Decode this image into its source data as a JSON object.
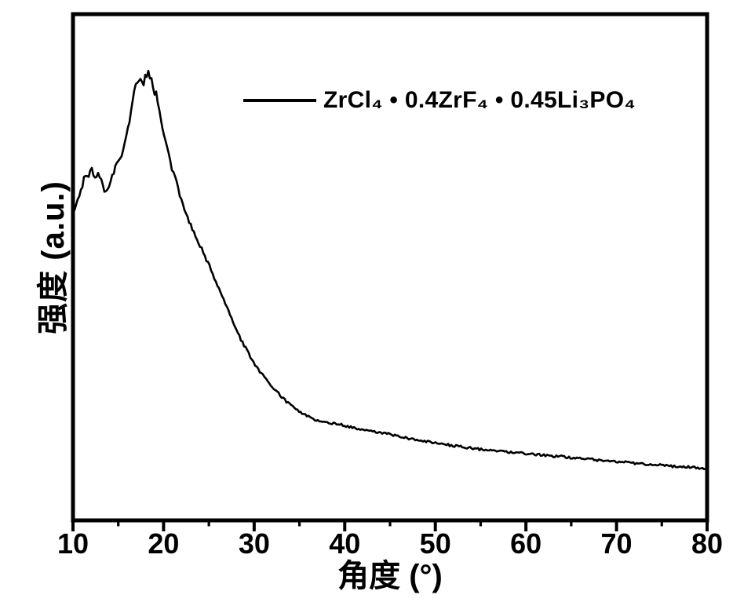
{
  "figure": {
    "background": "#ffffff",
    "frame_color": "#000000",
    "line_color": "#000000",
    "text_color": "#000000"
  },
  "chart_data": {
    "type": "line",
    "title": "",
    "xlabel": "角度 (°)",
    "ylabel": "强度 (a.u.)",
    "xlim": [
      10,
      80
    ],
    "ylim": [
      0,
      1
    ],
    "xticks": [
      10,
      20,
      30,
      40,
      50,
      60,
      70,
      80
    ],
    "minor_xticks": [
      15,
      25,
      35,
      45,
      55,
      65,
      75
    ],
    "yticks": [],
    "grid": false,
    "legend": {
      "position": "upper-center-inside",
      "entries": [
        {
          "label": "ZrCl₄ • 0.4ZrF₄ • 0.45Li₃PO₄",
          "color": "#000000"
        }
      ]
    },
    "series": [
      {
        "name": "ZrCl₄ • 0.4ZrF₄ • 0.45Li₃PO₄",
        "points": [
          [
            10,
            0.605
          ],
          [
            10.3,
            0.618
          ],
          [
            10.6,
            0.632
          ],
          [
            10.9,
            0.648
          ],
          [
            11.2,
            0.667
          ],
          [
            11.5,
            0.673
          ],
          [
            11.8,
            0.681
          ],
          [
            12.1,
            0.686
          ],
          [
            12.4,
            0.672
          ],
          [
            12.7,
            0.679
          ],
          [
            13,
            0.674
          ],
          [
            13.3,
            0.655
          ],
          [
            13.6,
            0.645
          ],
          [
            13.9,
            0.655
          ],
          [
            14.2,
            0.668
          ],
          [
            14.5,
            0.682
          ],
          [
            14.8,
            0.698
          ],
          [
            15.1,
            0.71
          ],
          [
            15.4,
            0.722
          ],
          [
            15.7,
            0.74
          ],
          [
            16,
            0.766
          ],
          [
            16.3,
            0.793
          ],
          [
            16.6,
            0.82
          ],
          [
            16.9,
            0.845
          ],
          [
            17.1,
            0.862
          ],
          [
            17.35,
            0.875
          ],
          [
            17.6,
            0.873
          ],
          [
            17.85,
            0.857
          ],
          [
            18.1,
            0.876
          ],
          [
            18.35,
            0.874
          ],
          [
            18.6,
            0.871
          ],
          [
            18.85,
            0.856
          ],
          [
            19.1,
            0.838
          ],
          [
            19.4,
            0.812
          ],
          [
            19.7,
            0.786
          ],
          [
            20,
            0.766
          ],
          [
            20.4,
            0.732
          ],
          [
            20.8,
            0.7
          ],
          [
            21.2,
            0.676
          ],
          [
            21.6,
            0.652
          ],
          [
            22,
            0.623
          ],
          [
            22.5,
            0.6
          ],
          [
            23,
            0.577
          ],
          [
            23.5,
            0.558
          ],
          [
            24,
            0.54
          ],
          [
            24.5,
            0.52
          ],
          [
            25,
            0.5
          ],
          [
            25.5,
            0.48
          ],
          [
            26,
            0.46
          ],
          [
            26.5,
            0.438
          ],
          [
            27,
            0.417
          ],
          [
            27.5,
            0.395
          ],
          [
            28,
            0.374
          ],
          [
            28.5,
            0.356
          ],
          [
            29,
            0.34
          ],
          [
            29.5,
            0.323
          ],
          [
            30,
            0.308
          ],
          [
            30.5,
            0.295
          ],
          [
            31,
            0.283
          ],
          [
            31.5,
            0.272
          ],
          [
            32,
            0.262
          ],
          [
            32.5,
            0.252
          ],
          [
            33,
            0.243
          ],
          [
            33.5,
            0.234
          ],
          [
            34,
            0.226
          ],
          [
            34.5,
            0.219
          ],
          [
            35,
            0.213
          ],
          [
            35.5,
            0.208
          ],
          [
            36,
            0.203
          ],
          [
            36.5,
            0.199
          ],
          [
            37,
            0.196
          ],
          [
            37.5,
            0.193
          ],
          [
            38,
            0.191
          ],
          [
            38.5,
            0.19
          ],
          [
            39,
            0.19
          ],
          [
            39.5,
            0.188
          ],
          [
            40,
            0.186
          ],
          [
            41,
            0.181
          ],
          [
            42,
            0.178
          ],
          [
            43,
            0.175
          ],
          [
            44,
            0.172
          ],
          [
            45,
            0.169
          ],
          [
            46,
            0.164
          ],
          [
            47,
            0.161
          ],
          [
            48,
            0.158
          ],
          [
            49,
            0.155
          ],
          [
            50,
            0.152
          ],
          [
            51,
            0.149
          ],
          [
            52,
            0.146
          ],
          [
            53,
            0.144
          ],
          [
            54,
            0.142
          ],
          [
            55,
            0.139
          ],
          [
            56,
            0.137
          ],
          [
            57,
            0.135
          ],
          [
            58,
            0.134
          ],
          [
            59,
            0.132
          ],
          [
            60,
            0.131
          ],
          [
            61,
            0.129
          ],
          [
            62,
            0.128
          ],
          [
            63,
            0.126
          ],
          [
            64,
            0.125
          ],
          [
            65,
            0.123
          ],
          [
            66,
            0.122
          ],
          [
            67,
            0.12
          ],
          [
            68,
            0.118
          ],
          [
            69,
            0.117
          ],
          [
            70,
            0.115
          ],
          [
            71,
            0.114
          ],
          [
            72,
            0.112
          ],
          [
            73,
            0.111
          ],
          [
            74,
            0.109
          ],
          [
            75,
            0.108
          ],
          [
            76,
            0.106
          ],
          [
            77,
            0.105
          ],
          [
            78,
            0.105
          ],
          [
            79,
            0.103
          ],
          [
            80,
            0.102
          ]
        ]
      }
    ]
  }
}
